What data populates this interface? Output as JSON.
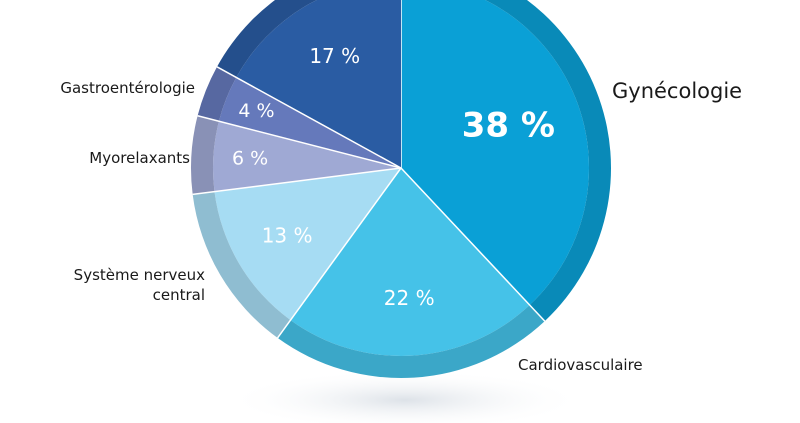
{
  "chart_data": {
    "type": "pie",
    "title": "",
    "slices": [
      {
        "label": "Gynécologie",
        "value": 38,
        "value_label": "38 %",
        "color": "#0aa0d6",
        "text_color": "#ffffff"
      },
      {
        "label": "Cardiovasculaire",
        "value": 22,
        "value_label": "22 %",
        "color": "#45c2e8",
        "text_color": "#ffffff"
      },
      {
        "label": "Système nerveux\ncentral",
        "value": 13,
        "value_label": "13 %",
        "color": "#a6dcf3",
        "text_color": "#ffffff"
      },
      {
        "label": "Myorelaxants",
        "value": 6,
        "value_label": "6 %",
        "color": "#9fa9d4",
        "text_color": "#ffffff"
      },
      {
        "label": "Gastroentérologie",
        "value": 4,
        "value_label": "4 %",
        "color": "#6579bb",
        "text_color": "#ffffff"
      },
      {
        "label": "",
        "value": 17,
        "value_label": "17 %",
        "color": "#2a5ca3",
        "text_color": "#ffffff"
      }
    ],
    "legend": "none"
  }
}
